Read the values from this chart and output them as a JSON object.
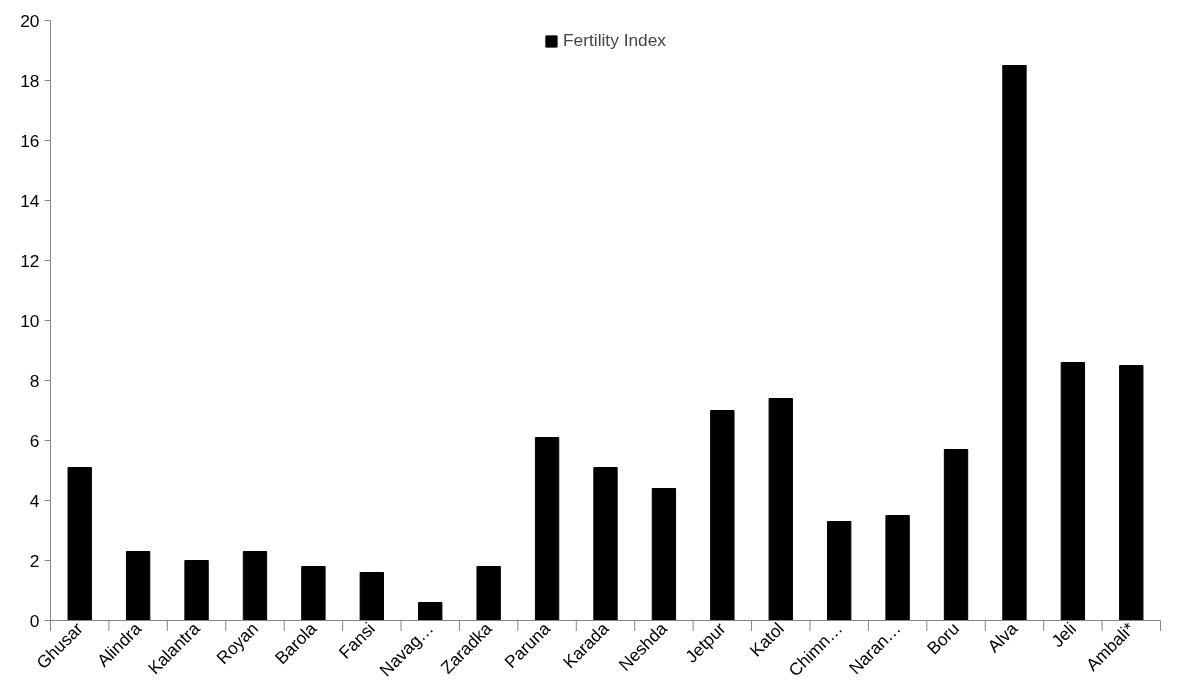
{
  "chart_data": {
    "type": "bar",
    "categories": [
      "Ghusar",
      "Alindra",
      "Kalantra",
      "Royan",
      "Barola",
      "Fansi",
      "Navag…",
      "Zaradka",
      "Paruna",
      "Karada",
      "Neshda",
      "Jetpur",
      "Katol",
      "Chimn…",
      "Naran…",
      "Boru",
      "Alva",
      "Jeli",
      "Ambali*"
    ],
    "series": [
      {
        "name": "Fertility Index",
        "color": "#000000",
        "values": [
          5.1,
          2.3,
          2.0,
          2.3,
          1.8,
          1.6,
          0.6,
          1.8,
          6.1,
          5.1,
          4.4,
          7.0,
          7.4,
          3.3,
          3.5,
          5.7,
          18.5,
          8.6,
          8.5
        ]
      }
    ],
    "ylim": [
      0,
      20
    ],
    "yticks": [
      0,
      2,
      4,
      6,
      8,
      10,
      12,
      14,
      16,
      18,
      20
    ],
    "grid": false,
    "legend": "top"
  }
}
